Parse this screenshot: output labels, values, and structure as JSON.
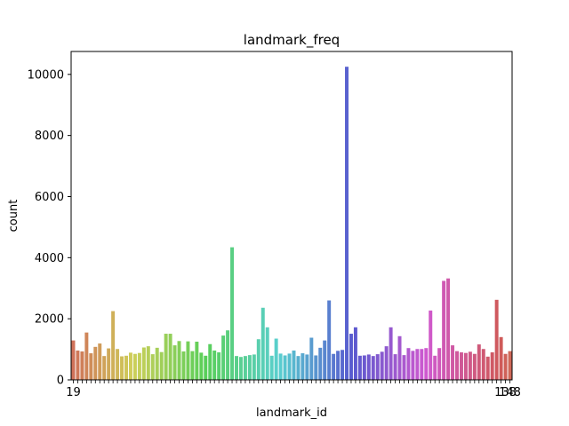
{
  "chart_data": {
    "type": "bar",
    "title": "landmark_freq",
    "xlabel": "landmark_id",
    "ylabel": "count",
    "ylim": [
      0,
      10750
    ],
    "yticks": [
      0,
      2000,
      4000,
      6000,
      8000,
      10000
    ],
    "grid": false,
    "palette": "husl",
    "x_tick_labels_visible": [
      "19",
      "138",
      "148"
    ],
    "values": [
      1290,
      960,
      930,
      1550,
      870,
      1080,
      1190,
      780,
      1030,
      2250,
      1010,
      770,
      790,
      890,
      850,
      880,
      1060,
      1100,
      840,
      1050,
      910,
      1510,
      1510,
      1130,
      1270,
      930,
      1260,
      940,
      1250,
      890,
      790,
      1170,
      960,
      900,
      1450,
      1620,
      4340,
      780,
      750,
      780,
      810,
      830,
      1330,
      2360,
      1720,
      790,
      1350,
      860,
      800,
      860,
      960,
      780,
      870,
      830,
      1380,
      800,
      1050,
      1290,
      2600,
      850,
      950,
      980,
      10250,
      1510,
      1720,
      790,
      800,
      830,
      780,
      840,
      920,
      1100,
      1720,
      840,
      1430,
      810,
      1040,
      950,
      1010,
      1010,
      1040,
      2270,
      790,
      1040,
      3240,
      3320,
      1130,
      940,
      900,
      880,
      920,
      850,
      1160,
      1010,
      760,
      900,
      2620,
      1400,
      850,
      940
    ]
  }
}
